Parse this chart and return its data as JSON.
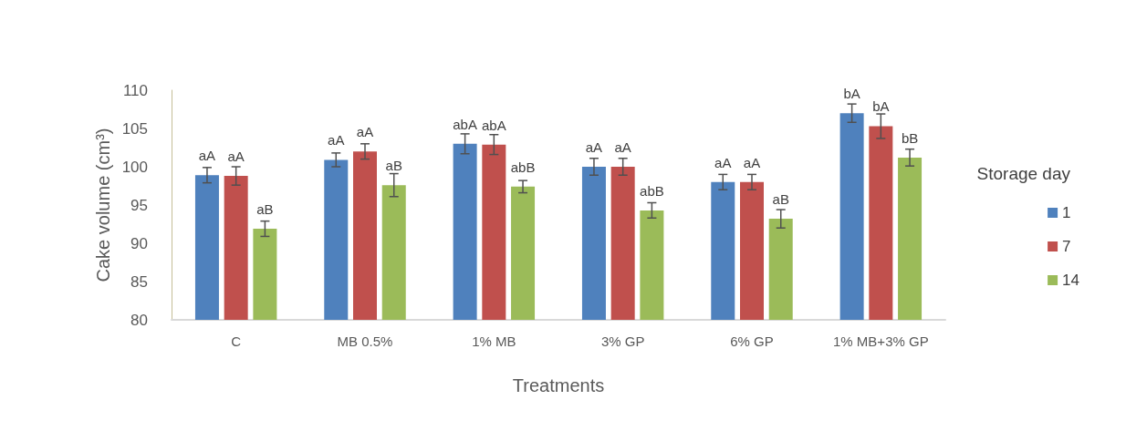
{
  "chart_data": {
    "type": "bar",
    "xlabel": "Treatments",
    "ylabel": "Cake volume (cm³)",
    "legend_title": "Storage day",
    "legend": "right",
    "categories": [
      "C",
      "MB 0.5%",
      "1% MB",
      "3% GP",
      "6% GP",
      "1% MB+3% GP"
    ],
    "ylim": [
      80,
      110
    ],
    "yticks": [
      80,
      85,
      90,
      95,
      100,
      105,
      110
    ],
    "grid": false,
    "series": [
      {
        "name": "1",
        "color": "#4f81bd",
        "values": [
          98.9,
          100.9,
          103.0,
          100.0,
          98.0,
          107.0
        ],
        "errors": [
          1.0,
          0.9,
          1.3,
          1.1,
          1.0,
          1.2
        ],
        "value_labels": [
          "aA",
          "aA",
          "abA",
          "aA",
          "aA",
          "bA"
        ]
      },
      {
        "name": "7",
        "color": "#c0504d",
        "values": [
          98.8,
          102.0,
          102.9,
          100.0,
          98.0,
          105.3
        ],
        "errors": [
          1.2,
          1.0,
          1.3,
          1.1,
          1.0,
          1.6
        ],
        "value_labels": [
          "aA",
          "aA",
          "abA",
          "aA",
          "aA",
          "bA"
        ]
      },
      {
        "name": "14",
        "color": "#9bbb59",
        "values": [
          91.9,
          97.6,
          97.4,
          94.3,
          93.2,
          101.2
        ],
        "errors": [
          1.0,
          1.5,
          0.8,
          1.0,
          1.2,
          1.1
        ],
        "value_labels": [
          "aB",
          "aB",
          "abB",
          "abB",
          "aB",
          "bB"
        ]
      }
    ]
  }
}
